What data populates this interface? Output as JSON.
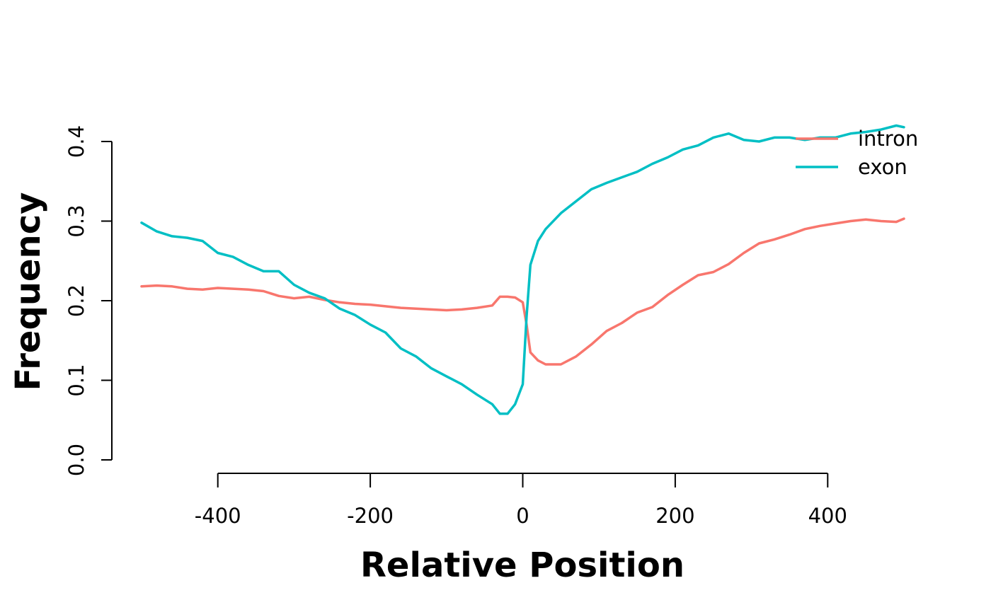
{
  "chart_data": {
    "type": "line",
    "title": "",
    "xlabel": "Relative Position",
    "ylabel": "Frequency",
    "xlim": [
      -500,
      500
    ],
    "ylim": [
      0,
      0.4
    ],
    "x_ticks": [
      -400,
      -200,
      0,
      200,
      400
    ],
    "y_ticks": [
      0.0,
      0.1,
      0.2,
      0.3,
      0.4
    ],
    "x_tick_labels": [
      "-400",
      "-200",
      "0",
      "200",
      "400"
    ],
    "y_tick_labels": [
      "0.0",
      "0.1",
      "0.2",
      "0.3",
      "0.4"
    ],
    "grid": false,
    "legend_position": "top-right",
    "series": [
      {
        "name": "intron",
        "color": "#F8766D",
        "points": [
          [
            -500,
            0.218
          ],
          [
            -480,
            0.219
          ],
          [
            -460,
            0.218
          ],
          [
            -440,
            0.215
          ],
          [
            -420,
            0.214
          ],
          [
            -400,
            0.216
          ],
          [
            -380,
            0.215
          ],
          [
            -360,
            0.214
          ],
          [
            -340,
            0.212
          ],
          [
            -320,
            0.206
          ],
          [
            -300,
            0.203
          ],
          [
            -280,
            0.205
          ],
          [
            -260,
            0.201
          ],
          [
            -240,
            0.198
          ],
          [
            -220,
            0.196
          ],
          [
            -200,
            0.195
          ],
          [
            -180,
            0.193
          ],
          [
            -160,
            0.191
          ],
          [
            -140,
            0.19
          ],
          [
            -120,
            0.189
          ],
          [
            -100,
            0.188
          ],
          [
            -80,
            0.189
          ],
          [
            -60,
            0.191
          ],
          [
            -40,
            0.194
          ],
          [
            -30,
            0.205
          ],
          [
            -20,
            0.205
          ],
          [
            -10,
            0.204
          ],
          [
            0,
            0.198
          ],
          [
            5,
            0.17
          ],
          [
            10,
            0.135
          ],
          [
            20,
            0.125
          ],
          [
            30,
            0.12
          ],
          [
            50,
            0.12
          ],
          [
            70,
            0.13
          ],
          [
            90,
            0.145
          ],
          [
            110,
            0.162
          ],
          [
            130,
            0.172
          ],
          [
            150,
            0.185
          ],
          [
            170,
            0.192
          ],
          [
            190,
            0.207
          ],
          [
            210,
            0.22
          ],
          [
            230,
            0.232
          ],
          [
            250,
            0.236
          ],
          [
            270,
            0.246
          ],
          [
            290,
            0.26
          ],
          [
            310,
            0.272
          ],
          [
            330,
            0.277
          ],
          [
            350,
            0.283
          ],
          [
            370,
            0.29
          ],
          [
            390,
            0.294
          ],
          [
            410,
            0.297
          ],
          [
            430,
            0.3
          ],
          [
            450,
            0.302
          ],
          [
            470,
            0.3
          ],
          [
            490,
            0.299
          ],
          [
            500,
            0.303
          ]
        ]
      },
      {
        "name": "exon",
        "color": "#00BFC4",
        "points": [
          [
            -500,
            0.298
          ],
          [
            -480,
            0.287
          ],
          [
            -460,
            0.281
          ],
          [
            -440,
            0.279
          ],
          [
            -420,
            0.275
          ],
          [
            -400,
            0.26
          ],
          [
            -380,
            0.255
          ],
          [
            -360,
            0.245
          ],
          [
            -340,
            0.237
          ],
          [
            -320,
            0.237
          ],
          [
            -300,
            0.22
          ],
          [
            -280,
            0.21
          ],
          [
            -260,
            0.203
          ],
          [
            -240,
            0.19
          ],
          [
            -220,
            0.182
          ],
          [
            -200,
            0.17
          ],
          [
            -180,
            0.16
          ],
          [
            -160,
            0.14
          ],
          [
            -140,
            0.13
          ],
          [
            -120,
            0.115
          ],
          [
            -100,
            0.105
          ],
          [
            -80,
            0.095
          ],
          [
            -60,
            0.082
          ],
          [
            -40,
            0.07
          ],
          [
            -30,
            0.058
          ],
          [
            -20,
            0.058
          ],
          [
            -10,
            0.07
          ],
          [
            0,
            0.095
          ],
          [
            5,
            0.18
          ],
          [
            10,
            0.245
          ],
          [
            20,
            0.275
          ],
          [
            30,
            0.29
          ],
          [
            50,
            0.31
          ],
          [
            70,
            0.325
          ],
          [
            90,
            0.34
          ],
          [
            110,
            0.348
          ],
          [
            130,
            0.355
          ],
          [
            150,
            0.362
          ],
          [
            170,
            0.372
          ],
          [
            190,
            0.38
          ],
          [
            210,
            0.39
          ],
          [
            230,
            0.395
          ],
          [
            250,
            0.405
          ],
          [
            270,
            0.41
          ],
          [
            290,
            0.402
          ],
          [
            310,
            0.4
          ],
          [
            330,
            0.405
          ],
          [
            350,
            0.405
          ],
          [
            370,
            0.402
          ],
          [
            390,
            0.405
          ],
          [
            410,
            0.405
          ],
          [
            430,
            0.41
          ],
          [
            450,
            0.412
          ],
          [
            470,
            0.415
          ],
          [
            490,
            0.42
          ],
          [
            500,
            0.418
          ]
        ]
      }
    ]
  }
}
